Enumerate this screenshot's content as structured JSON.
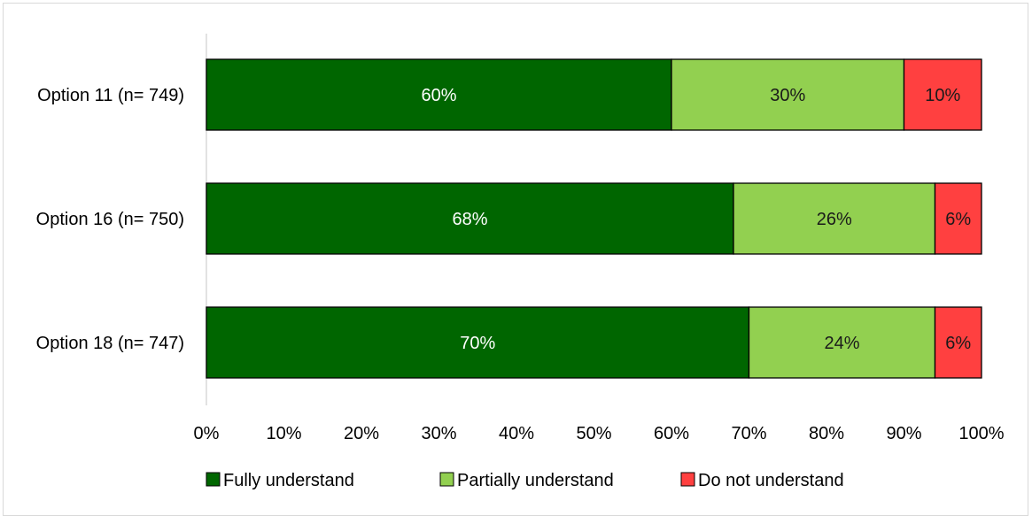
{
  "chart_data": {
    "type": "bar",
    "orientation": "horizontal",
    "stacked": true,
    "categories": [
      "Option 11 (n= 749)",
      "Option 16 (n= 750)",
      "Option 18 (n= 747)"
    ],
    "series": [
      {
        "name": "Fully understand",
        "color": "#006600",
        "label_color": "#ffffff",
        "values": [
          60,
          68,
          70
        ],
        "labels": [
          "60%",
          "68%",
          "70%"
        ]
      },
      {
        "name": "Partially understand",
        "color": "#92d050",
        "label_color": "#1a1a1a",
        "values": [
          30,
          26,
          24
        ],
        "labels": [
          "30%",
          "26%",
          "24%"
        ]
      },
      {
        "name": "Do not understand",
        "color": "#ff4040",
        "label_color": "#1a1a1a",
        "values": [
          10,
          6,
          6
        ],
        "labels": [
          "10%",
          "6%",
          "6%"
        ]
      }
    ],
    "x_ticks": [
      "0%",
      "10%",
      "20%",
      "30%",
      "40%",
      "50%",
      "60%",
      "70%",
      "80%",
      "90%",
      "100%"
    ],
    "xlim": [
      0,
      100
    ],
    "grid": false,
    "legend_position": "bottom"
  }
}
